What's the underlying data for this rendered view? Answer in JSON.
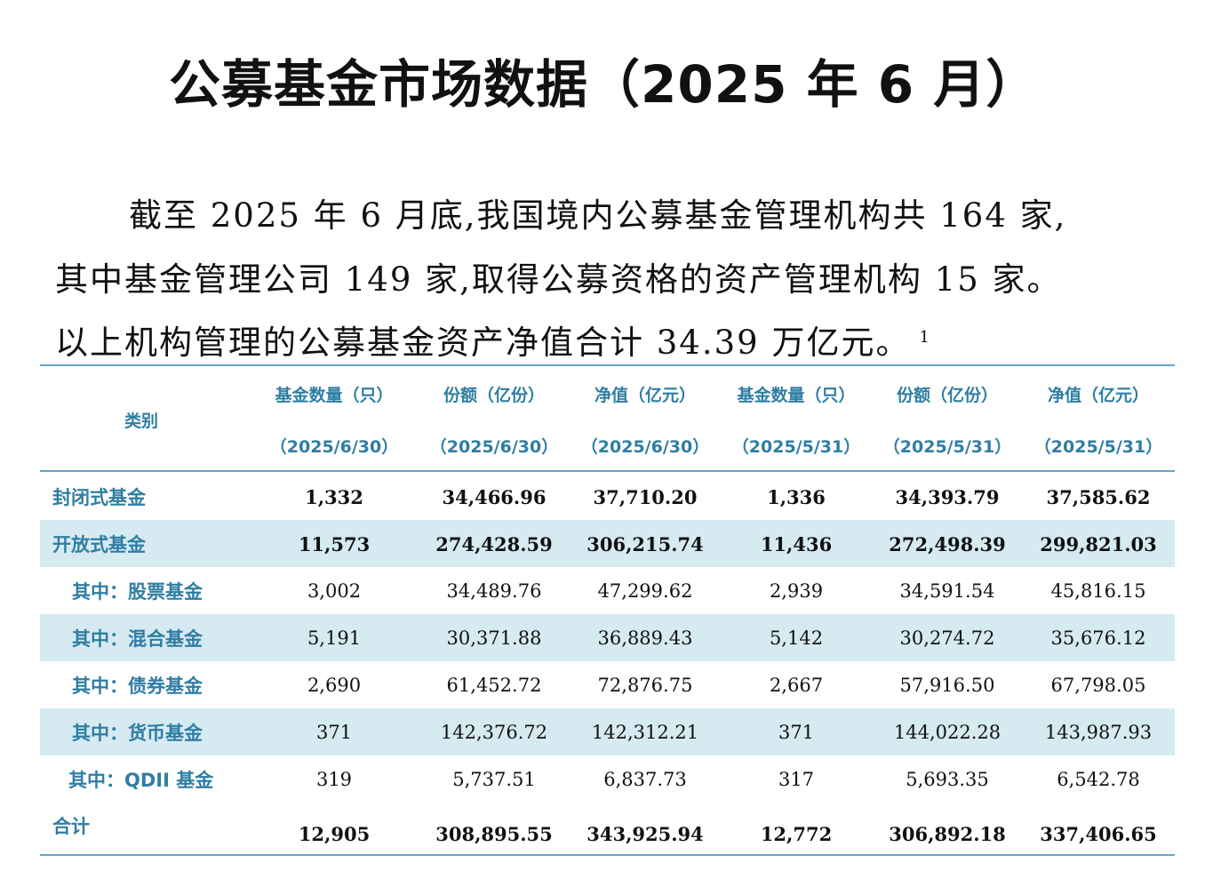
{
  "title": "公募基金市场数据（2025 年 6 月）",
  "paragraph": {
    "line1": "截至 2025 年 6 月底,我国境内公募基金管理机构共 164 家,",
    "line2": "其中基金管理公司 149 家,取得公募资格的资产管理机构 15 家。",
    "line3": "以上机构管理的公募基金资产净值合计 34.39 万亿元。",
    "footnote": "1"
  },
  "table": {
    "category_header": "类别",
    "headers": [
      {
        "l1": "基金数量（只）",
        "l2": "（2025/6/30）"
      },
      {
        "l1": "份额（亿份）",
        "l2": "（2025/6/30）"
      },
      {
        "l1": "净值（亿元）",
        "l2": "（2025/6/30）"
      },
      {
        "l1": "基金数量（只）",
        "l2": "（2025/5/31）"
      },
      {
        "l1": "份额（亿份）",
        "l2": "（2025/5/31）"
      },
      {
        "l1": "净值（亿元）",
        "l2": "（2025/5/31）"
      }
    ],
    "rows": [
      {
        "label": "封闭式基金",
        "values": [
          "1,332",
          "34,466.96",
          "37,710.20",
          "1,336",
          "34,393.79",
          "37,585.62"
        ]
      },
      {
        "label": "开放式基金",
        "values": [
          "11,573",
          "274,428.59",
          "306,215.74",
          "11,436",
          "272,498.39",
          "299,821.03"
        ]
      },
      {
        "label": "其中：股票基金",
        "values": [
          "3,002",
          "34,489.76",
          "47,299.62",
          "2,939",
          "34,591.54",
          "45,816.15"
        ]
      },
      {
        "label": "其中：混合基金",
        "values": [
          "5,191",
          "30,371.88",
          "36,889.43",
          "5,142",
          "30,274.72",
          "35,676.12"
        ]
      },
      {
        "label": "其中：债券基金",
        "values": [
          "2,690",
          "61,452.72",
          "72,876.75",
          "2,667",
          "57,916.50",
          "67,798.05"
        ]
      },
      {
        "label": "其中：货币基金",
        "values": [
          "371",
          "142,376.72",
          "142,312.21",
          "371",
          "144,022.28",
          "143,987.93"
        ]
      },
      {
        "label": "其中：QDII 基金",
        "values": [
          "319",
          "5,737.51",
          "6,837.73",
          "317",
          "5,693.35",
          "6,542.78"
        ]
      },
      {
        "label": "合计",
        "values": [
          "12,905",
          "308,895.55",
          "343,925.94",
          "12,772",
          "306,892.18",
          "337,406.65"
        ]
      }
    ]
  }
}
